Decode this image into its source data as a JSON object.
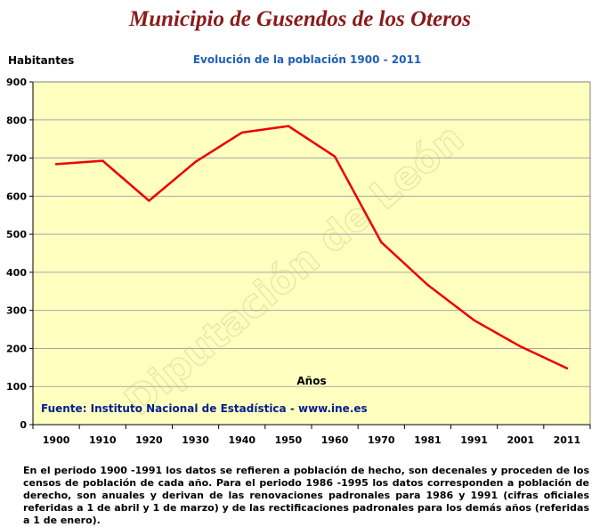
{
  "title": "Municipio de Gusendos de los Oteros",
  "note": "En el periodo 1900 -1991 los datos se refieren a población de hecho, son decenales y proceden de los censos de población de cada año. Para el periodo 1986 -1995 los datos corresponden a población de derecho, son anuales y derivan de las renovaciones padronales para 1986 y 1991 (cifras oficiales referidas a 1 de abril y 1 de marzo) y de las rectificaciones padronales para los demás años (referidas a 1 de enero).",
  "chart_data": {
    "type": "line",
    "title": "Evolución de la población 1900 - 2011",
    "ylabel": "Habitantes",
    "xlabel": "Años",
    "source": "Fuente: Instituto Nacional de Estadística - www.ine.es",
    "watermark": "Diputación de León",
    "categories": [
      "1900",
      "1910",
      "1920",
      "1930",
      "1940",
      "1950",
      "1960",
      "1970",
      "1981",
      "1991",
      "2001",
      "2011"
    ],
    "values": [
      684,
      693,
      588,
      690,
      767,
      784,
      704,
      479,
      367,
      274,
      205,
      148
    ],
    "ylim": [
      0,
      900
    ],
    "yticks": [
      0,
      100,
      200,
      300,
      400,
      500,
      600,
      700,
      800,
      900
    ],
    "grid": true,
    "colors": {
      "line": "#ee0000",
      "plot_bg": "#ffffc0",
      "grid": "#a8a8a8",
      "source_text": "#001f8c",
      "watermark": "#e6e6a0"
    }
  }
}
